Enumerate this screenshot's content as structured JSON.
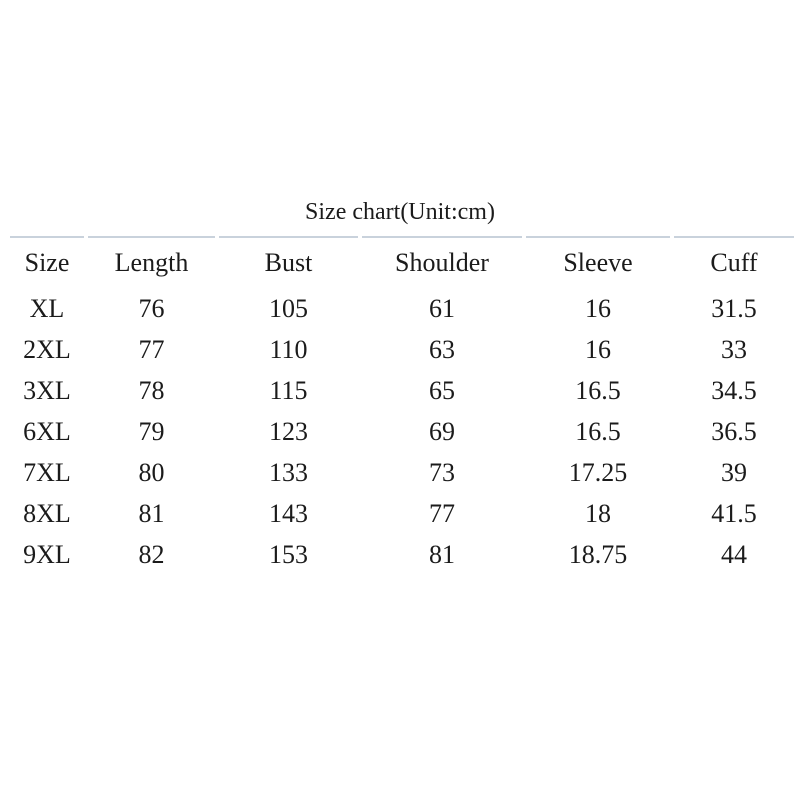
{
  "title": "Size chart(Unit:cm)",
  "styles": {
    "rule_color": "#c9d2dc",
    "text_color": "#1b1b1b",
    "background": "#ffffff"
  },
  "chart_data": {
    "type": "table",
    "title": "Size chart(Unit:cm)",
    "unit": "cm",
    "columns": [
      "Size",
      "Length",
      "Bust",
      "Shoulder",
      "Sleeve",
      "Cuff"
    ],
    "rows": [
      [
        "XL",
        "76",
        "105",
        "61",
        "16",
        "31.5"
      ],
      [
        "2XL",
        "77",
        "110",
        "63",
        "16",
        "33"
      ],
      [
        "3XL",
        "78",
        "115",
        "65",
        "16.5",
        "34.5"
      ],
      [
        "6XL",
        "79",
        "123",
        "69",
        "16.5",
        "36.5"
      ],
      [
        "7XL",
        "80",
        "133",
        "73",
        "17.25",
        "39"
      ],
      [
        "8XL",
        "81",
        "143",
        "77",
        "18",
        "41.5"
      ],
      [
        "9XL",
        "82",
        "153",
        "81",
        "18.75",
        "44"
      ]
    ]
  }
}
